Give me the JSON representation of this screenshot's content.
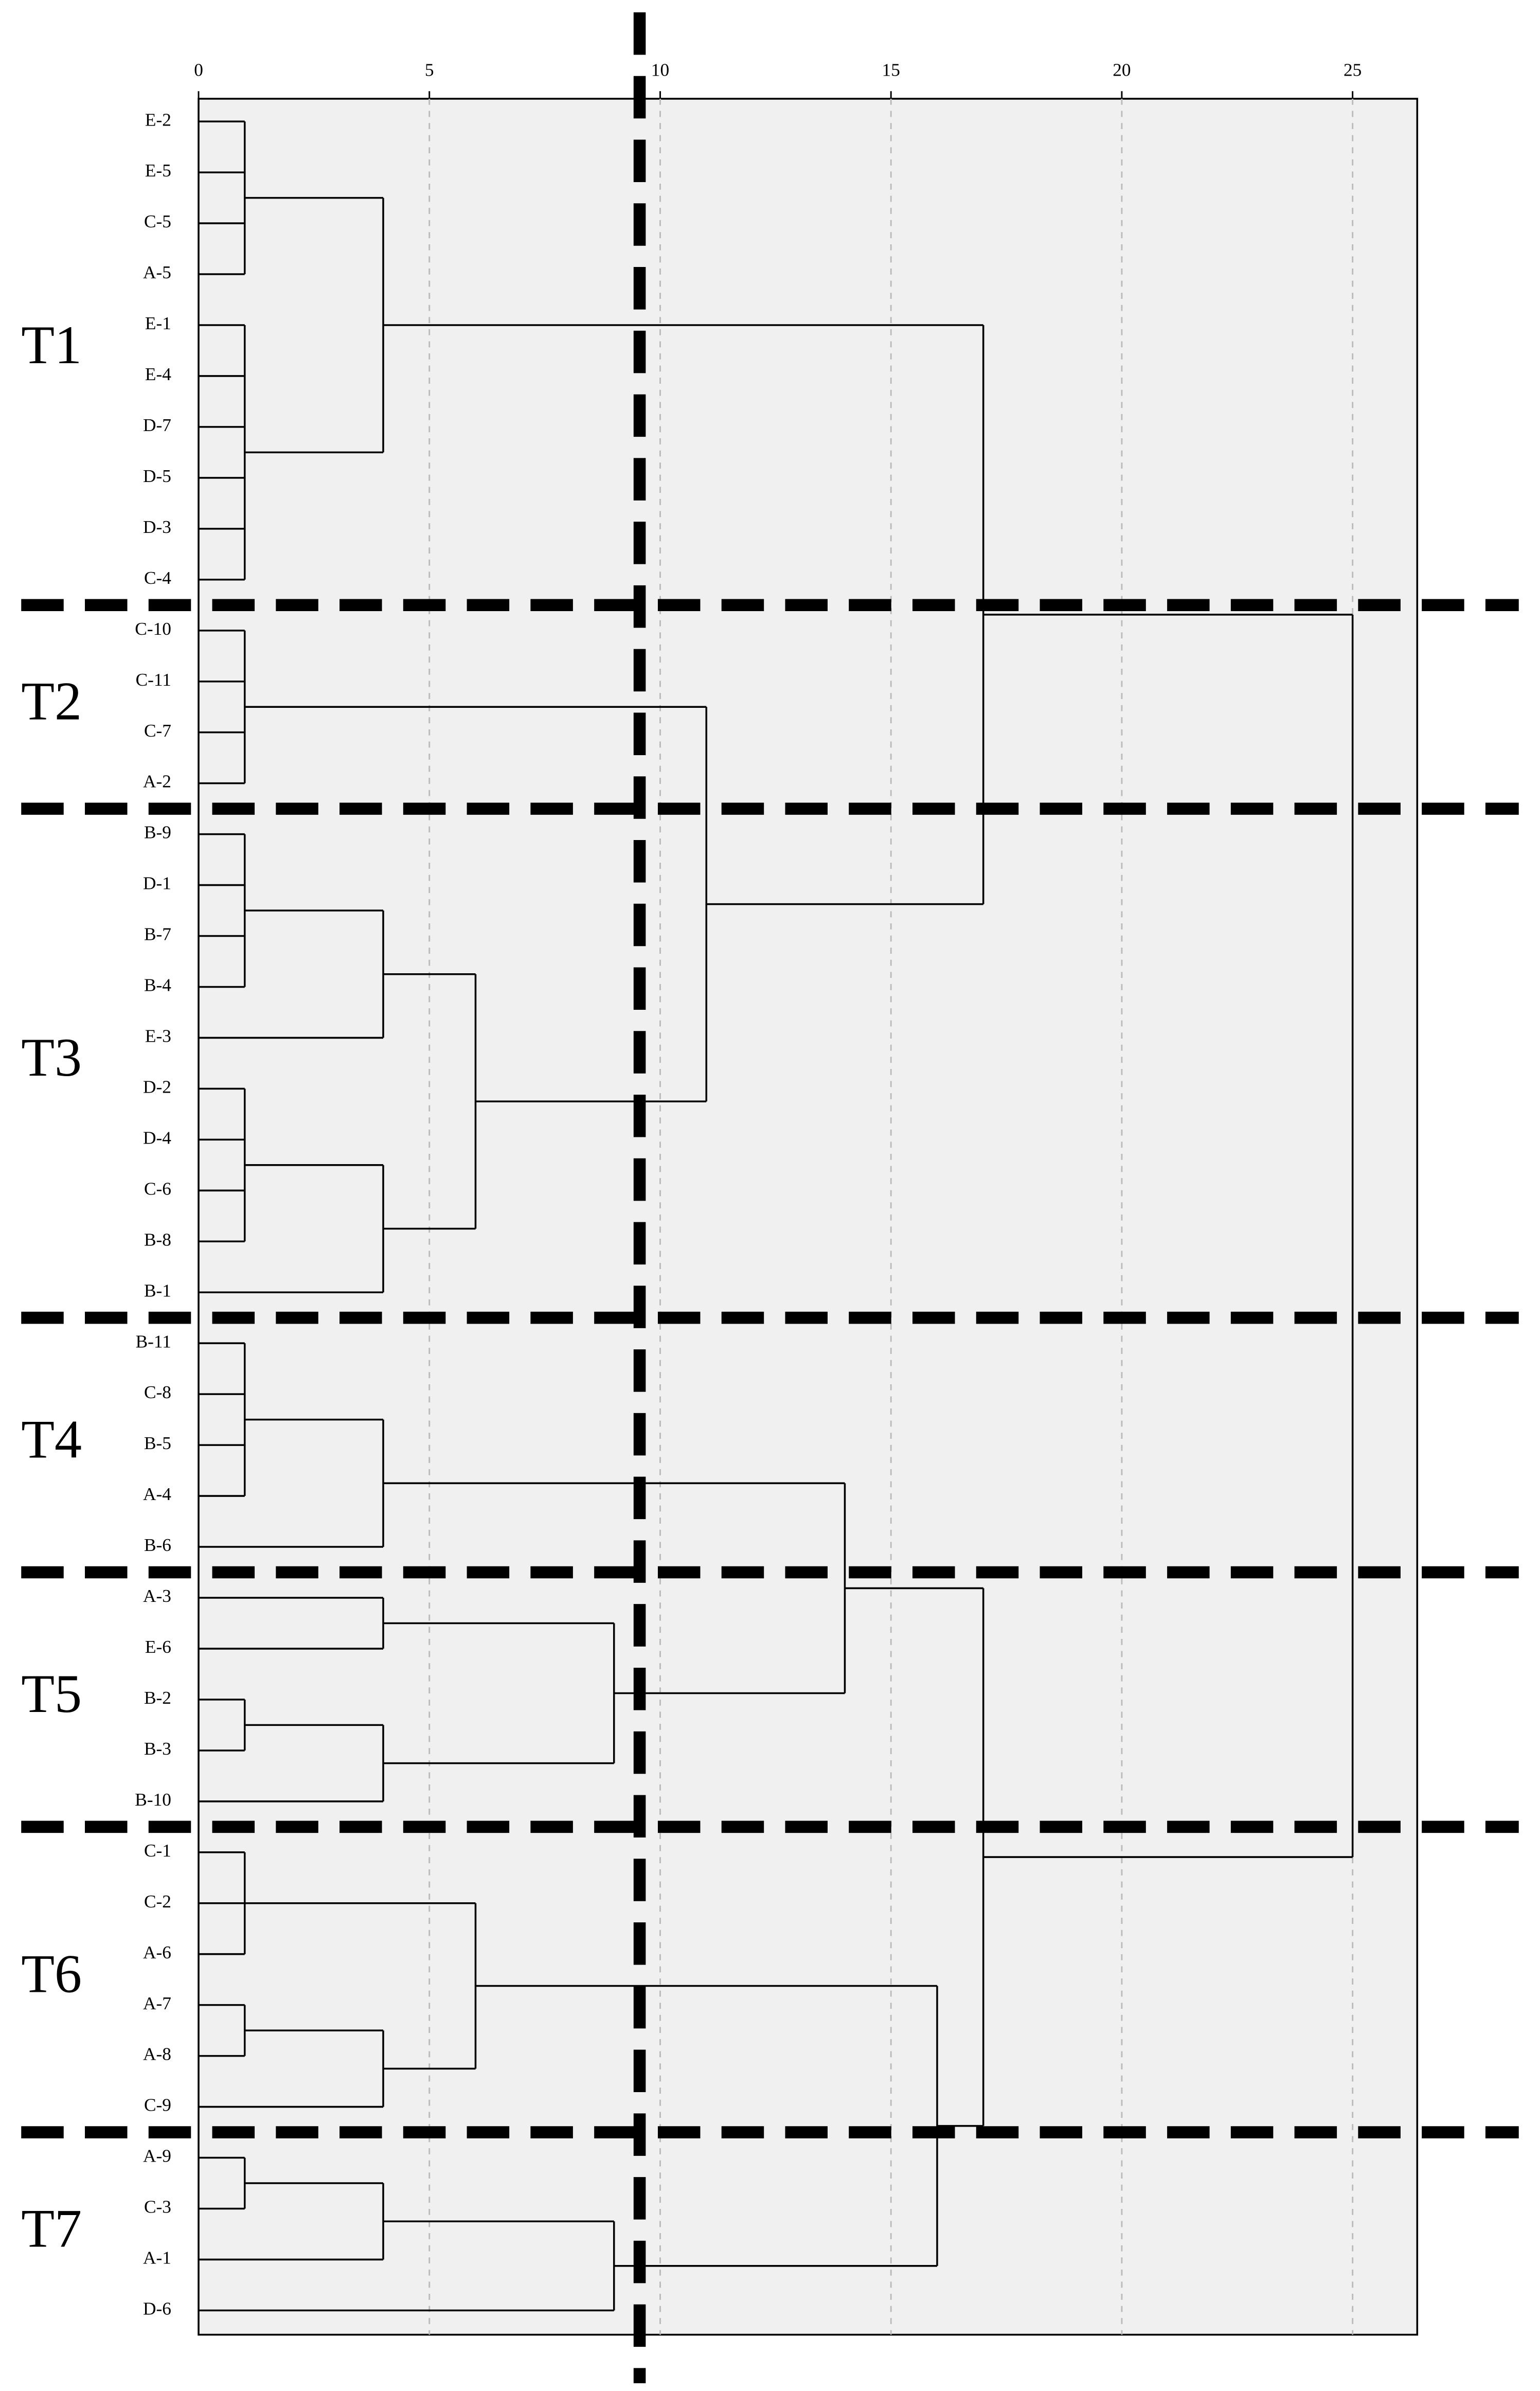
{
  "chart_data": {
    "type": "dendrogram",
    "leaves": [
      "E-2",
      "E-5",
      "C-5",
      "A-5",
      "E-1",
      "E-4",
      "D-7",
      "D-5",
      "D-3",
      "C-4",
      "C-10",
      "C-11",
      "C-7",
      "A-2",
      "B-9",
      "D-1",
      "B-7",
      "B-4",
      "E-3",
      "D-2",
      "D-4",
      "C-6",
      "B-8",
      "B-1",
      "B-11",
      "C-8",
      "B-5",
      "A-4",
      "B-6",
      "A-3",
      "E-6",
      "B-2",
      "B-3",
      "B-10",
      "C-1",
      "C-2",
      "A-6",
      "A-7",
      "A-8",
      "C-9",
      "A-9",
      "C-3",
      "A-1",
      "D-6"
    ],
    "merges": [
      {
        "children": [
          0,
          1,
          2,
          3
        ],
        "height": 1
      },
      {
        "children": [
          4,
          5,
          6,
          7,
          8,
          9
        ],
        "height": 1
      },
      {
        "children": [
          44,
          45
        ],
        "height": 4
      },
      {
        "children": [
          10,
          11,
          12,
          13
        ],
        "height": 1
      },
      {
        "children": [
          14,
          15,
          16,
          17
        ],
        "height": 1
      },
      {
        "children": [
          48,
          18
        ],
        "height": 4
      },
      {
        "children": [
          19,
          20,
          21,
          22
        ],
        "height": 1
      },
      {
        "children": [
          50,
          23
        ],
        "height": 4
      },
      {
        "children": [
          49,
          51
        ],
        "height": 6
      },
      {
        "children": [
          47,
          52
        ],
        "height": 11
      },
      {
        "children": [
          46,
          53
        ],
        "height": 17
      },
      {
        "children": [
          24,
          25,
          26,
          27
        ],
        "height": 1
      },
      {
        "children": [
          55,
          28
        ],
        "height": 4
      },
      {
        "children": [
          29,
          30
        ],
        "height": 4
      },
      {
        "children": [
          31,
          32
        ],
        "height": 1
      },
      {
        "children": [
          58,
          33
        ],
        "height": 4
      },
      {
        "children": [
          57,
          59
        ],
        "height": 9
      },
      {
        "children": [
          56,
          60
        ],
        "height": 14
      },
      {
        "children": [
          34,
          35,
          36
        ],
        "height": 1
      },
      {
        "children": [
          37,
          38
        ],
        "height": 1
      },
      {
        "children": [
          63,
          39
        ],
        "height": 4
      },
      {
        "children": [
          62,
          64
        ],
        "height": 6
      },
      {
        "children": [
          40,
          41
        ],
        "height": 1
      },
      {
        "children": [
          66,
          42
        ],
        "height": 4
      },
      {
        "children": [
          67,
          43
        ],
        "height": 9
      },
      {
        "children": [
          65,
          68
        ],
        "height": 16
      },
      {
        "children": [
          61,
          69
        ],
        "height": 17
      },
      {
        "children": [
          54,
          70
        ],
        "height": 25
      }
    ],
    "groups": [
      "T1",
      "T2",
      "T3",
      "T4",
      "T5",
      "T6",
      "T7"
    ],
    "xlim": [
      0,
      26.4
    ],
    "xticks": [
      0,
      5,
      10,
      15,
      20,
      25
    ],
    "grid": true
  }
}
